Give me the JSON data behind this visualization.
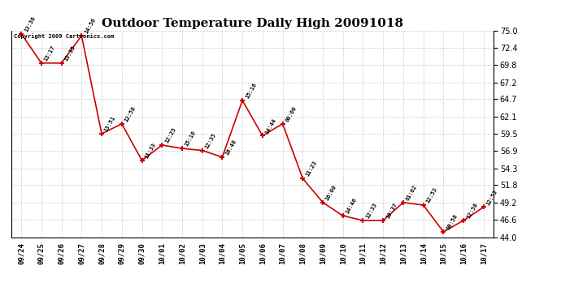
{
  "title": "Outdoor Temperature Daily High 20091018",
  "copyright": "Copyright 2009 Cartronics.com",
  "x_labels": [
    "09/24",
    "09/25",
    "09/26",
    "09/27",
    "09/28",
    "09/29",
    "09/30",
    "10/01",
    "10/02",
    "10/03",
    "10/04",
    "10/05",
    "10/06",
    "10/07",
    "10/08",
    "10/09",
    "10/10",
    "10/11",
    "10/12",
    "10/13",
    "10/14",
    "10/15",
    "10/16",
    "10/17"
  ],
  "y_values": [
    74.5,
    70.1,
    70.1,
    74.2,
    59.5,
    61.0,
    55.5,
    57.8,
    57.3,
    57.0,
    56.0,
    64.5,
    59.2,
    61.0,
    52.8,
    49.2,
    47.2,
    46.5,
    46.5,
    49.2,
    48.8,
    44.8,
    46.5,
    48.5
  ],
  "time_labels": [
    "13:36",
    "13:17",
    "13:35",
    "14:56",
    "13:51",
    "12:58",
    "11:33",
    "12:25",
    "15:10",
    "12:35",
    "16:48",
    "15:16",
    "14:44",
    "00:00",
    "11:23",
    "16:00",
    "14:46",
    "12:33",
    "10:37",
    "01:02",
    "12:53",
    "08:58",
    "12:58",
    "12:53"
  ],
  "line_color": "#cc0000",
  "marker_color": "#cc0000",
  "background_color": "#ffffff",
  "grid_color": "#cccccc",
  "ylim": [
    44.0,
    75.0
  ],
  "yticks": [
    44.0,
    46.6,
    49.2,
    51.8,
    54.3,
    56.9,
    59.5,
    62.1,
    64.7,
    67.2,
    69.8,
    72.4,
    75.0
  ],
  "title_fontsize": 11,
  "fig_width": 6.9,
  "fig_height": 3.75,
  "fig_dpi": 100
}
